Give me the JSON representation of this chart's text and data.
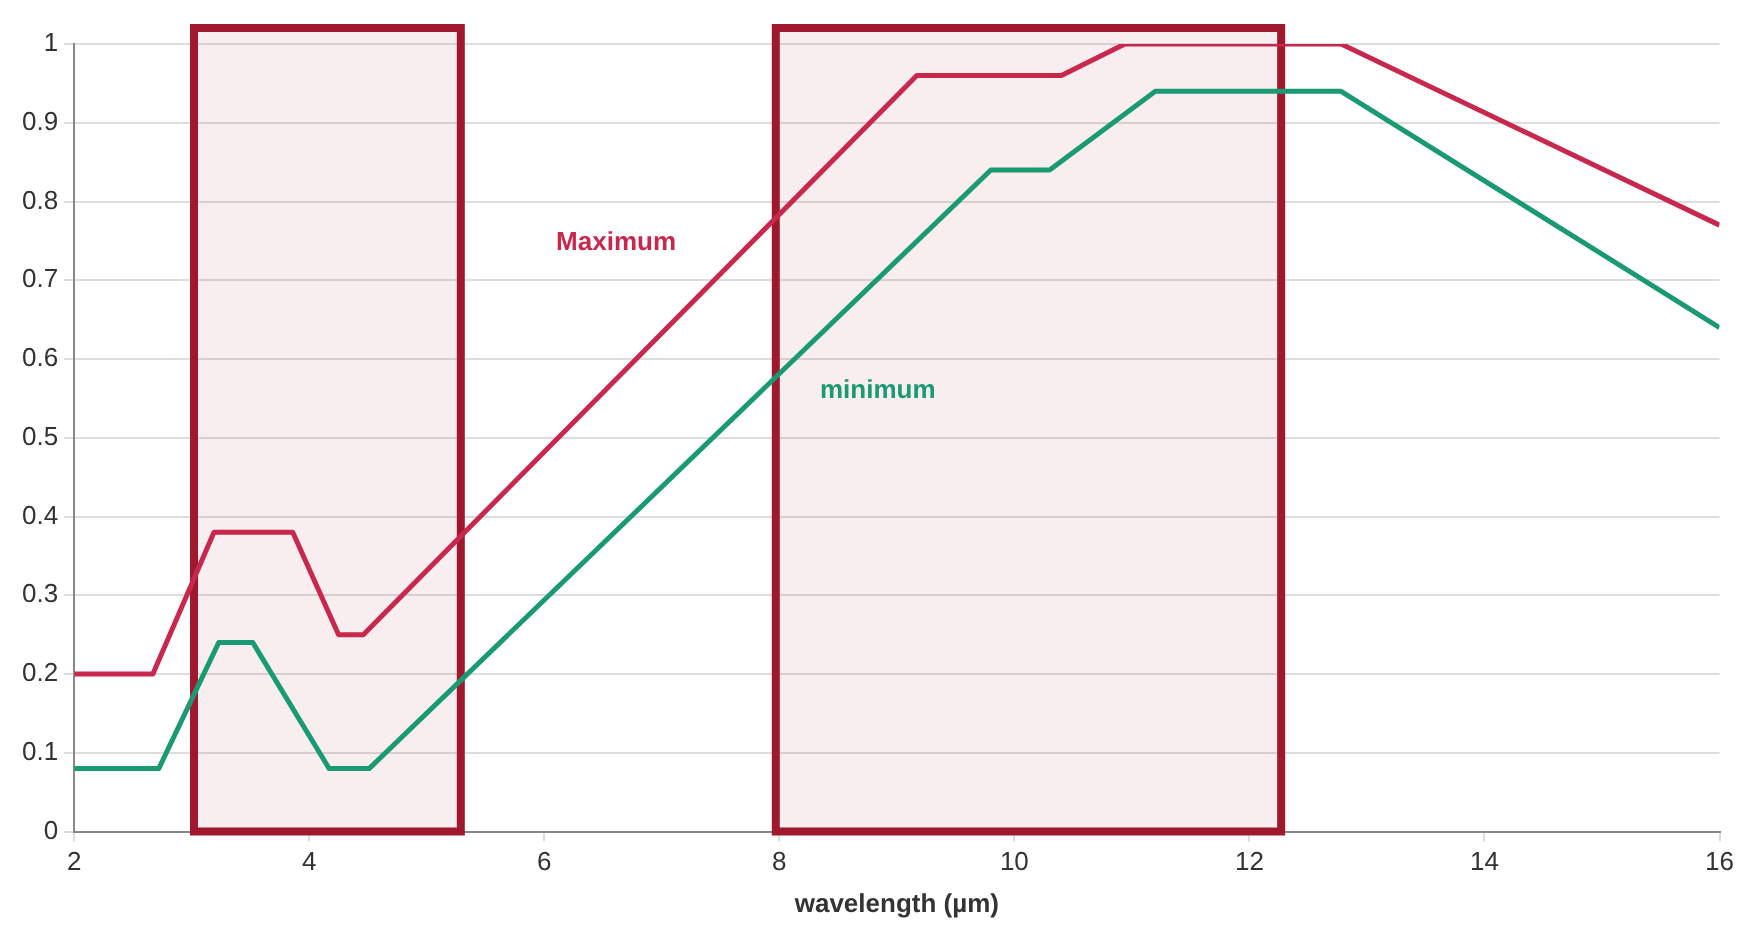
{
  "chart_data": {
    "type": "line",
    "xlabel": "wavelength (µm)",
    "xlim": [
      2,
      16
    ],
    "xticks": [
      2,
      4,
      6,
      8,
      10,
      12,
      14,
      16
    ],
    "ylim": [
      0,
      1
    ],
    "yticks": [
      0,
      0.1,
      0.2,
      0.3,
      0.4,
      0.5,
      0.6,
      0.7,
      0.8,
      0.9,
      1
    ],
    "grid": "y",
    "legend": false,
    "marker": "none",
    "line_style": "solid",
    "series": [
      {
        "name": "Maximum",
        "color": "#c8284e",
        "x": [
          2,
          2.67,
          3.19,
          3.86,
          4.25,
          4.46,
          9.17,
          10.4,
          10.94,
          12.78,
          16
        ],
        "values": [
          0.2,
          0.2,
          0.38,
          0.38,
          0.25,
          0.25,
          0.96,
          0.96,
          1,
          1,
          0.77
        ]
      },
      {
        "name": "minimum",
        "color": "#1a9a73",
        "x": [
          2,
          2.72,
          3.23,
          3.52,
          4.17,
          4.51,
          9.8,
          10.3,
          11.2,
          12.78,
          16
        ],
        "values": [
          0.08,
          0.08,
          0.24,
          0.24,
          0.08,
          0.08,
          0.84,
          0.84,
          0.94,
          0.94,
          0.64
        ]
      }
    ],
    "bands": [
      {
        "axis": "x",
        "from": 3.02,
        "to": 5.29,
        "color": "#a0182e"
      },
      {
        "axis": "x",
        "from": 7.97,
        "to": 12.27,
        "color": "#a0182e"
      }
    ]
  }
}
